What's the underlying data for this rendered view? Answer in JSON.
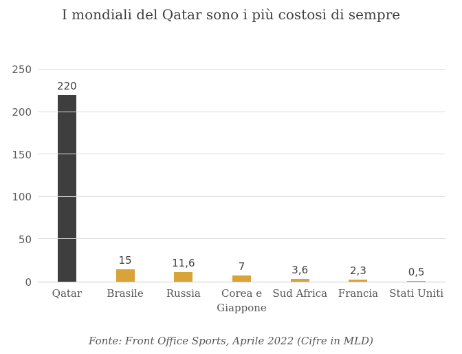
{
  "title": "I mondiali del Qatar sono i più costosi di sempre",
  "footer": "Fonte: Front Office Sports, Aprile 2022 (Cifre in MLD)",
  "colors": {
    "qatar_bar": "#3e3e3e",
    "default_bar": "#d9a437",
    "gridline": "#dcdcdc",
    "axis_line": "#c9c9c9",
    "title_text": "#3e3e3e",
    "tick_text": "#5c5c5c",
    "value_text": "#3f3f3f"
  },
  "chart_data": {
    "type": "bar",
    "title": "I mondiali del Qatar sono i più costosi di sempre",
    "categories": [
      "Qatar",
      "Brasile",
      "Russia",
      "Corea e Giappone",
      "Sud Africa",
      "Francia",
      "Stati Uniti"
    ],
    "values": [
      220,
      15,
      11.6,
      7,
      3.6,
      2.3,
      0.5
    ],
    "value_labels": [
      "220",
      "15",
      "11,6",
      "7",
      "3,6",
      "2,3",
      "0,5"
    ],
    "bar_colors": [
      "#3e3e3e",
      "#d9a437",
      "#d9a437",
      "#d9a437",
      "#d9a437",
      "#d9a437",
      "#d9a437"
    ],
    "xlabel": "",
    "ylabel": "",
    "ylim": [
      0,
      250
    ],
    "yticks": [
      0,
      50,
      100,
      150,
      200,
      250
    ],
    "grid": true,
    "legend": false,
    "source": "Fonte: Front Office Sports, Aprile 2022 (Cifre in MLD)"
  }
}
